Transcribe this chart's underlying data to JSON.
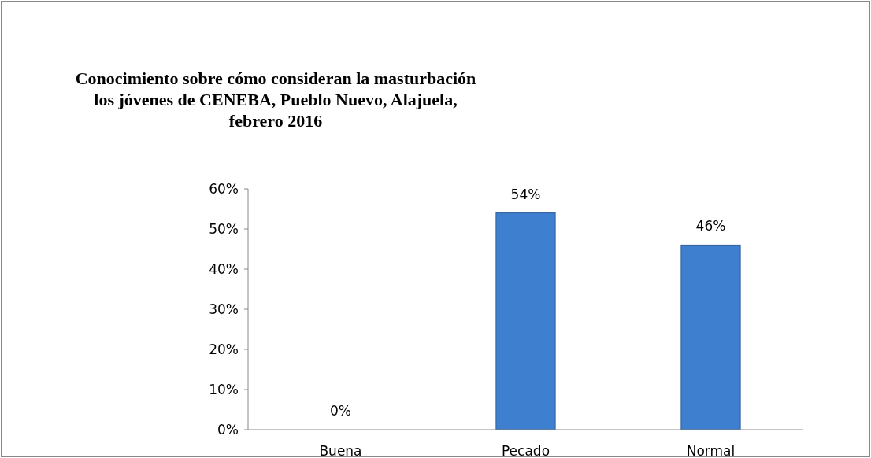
{
  "chart_data": {
    "type": "bar",
    "title": "Conocimiento sobre cómo consideran la masturbación los jóvenes de CENEBA, Pueblo Nuevo, Alajuela, febrero 2016",
    "categories": [
      "Buena",
      "Pecado",
      "Normal"
    ],
    "values": [
      0,
      54,
      46
    ],
    "value_labels": [
      "0%",
      "54%",
      "46%"
    ],
    "color": "#3e7fd0",
    "ylim": [
      0,
      60
    ],
    "yticks": [
      {
        "value": 0,
        "label": "0%"
      },
      {
        "value": 10,
        "label": "10%"
      },
      {
        "value": 20,
        "label": "20%"
      },
      {
        "value": 30,
        "label": "30%"
      },
      {
        "value": 40,
        "label": "40%"
      },
      {
        "value": 50,
        "label": "50%"
      },
      {
        "value": 60,
        "label": "60%"
      }
    ],
    "grid": false
  }
}
